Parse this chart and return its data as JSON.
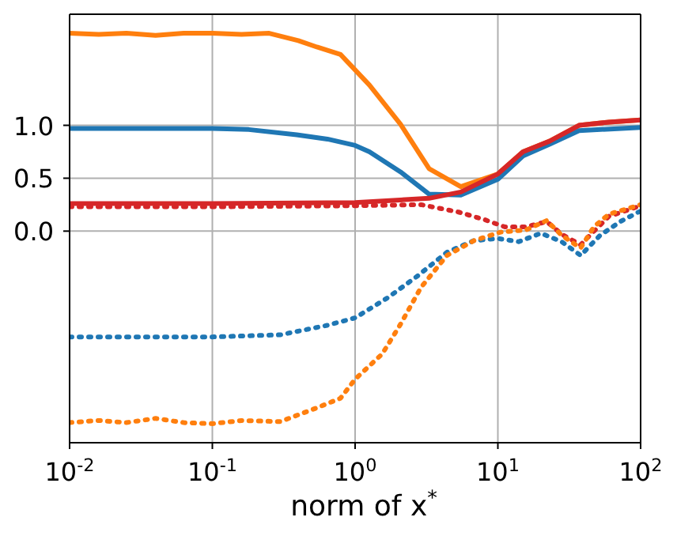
{
  "chart_data": {
    "type": "line",
    "xlabel": "norm of x$^{*}$",
    "log": "x",
    "grid": true,
    "legend": false,
    "marker": "none",
    "xlim": [
      0.01,
      100
    ],
    "ylim": [
      -2.0,
      2.05
    ],
    "xticks": [
      {
        "value": 0.01,
        "label": "10$^{-2}$"
      },
      {
        "value": 0.1,
        "label": "10$^{-1}$"
      },
      {
        "value": 1,
        "label": "10$^{0}$"
      },
      {
        "value": 10,
        "label": "10$^{1}$"
      },
      {
        "value": 100,
        "label": "10$^{2}$"
      }
    ],
    "yticks": [
      {
        "value": 0,
        "label": "0.0"
      },
      0.5,
      {
        "value": 1,
        "label": "1.0"
      }
    ],
    "series": [
      {
        "color": "#ff7f0e",
        "line_style": "solid",
        "x": [
          0.01,
          0.016,
          0.025,
          0.04,
          0.063,
          0.1,
          0.16,
          0.25,
          0.4,
          0.54,
          0.79,
          1.26,
          2.08,
          3.3,
          5.5,
          10,
          15,
          23,
          37,
          60,
          100
        ],
        "values": [
          1.87,
          1.86,
          1.87,
          1.85,
          1.87,
          1.87,
          1.86,
          1.87,
          1.8,
          1.74,
          1.67,
          1.38,
          1.01,
          0.59,
          0.42,
          0.54,
          0.75,
          0.85,
          1.0,
          1.03,
          1.05
        ]
      },
      {
        "color": "#1f77b4",
        "line_style": "solid",
        "x": [
          0.01,
          0.03,
          0.1,
          0.18,
          0.39,
          0.64,
          1.0,
          1.26,
          2.08,
          3.3,
          5.5,
          10,
          15,
          23,
          37,
          100
        ],
        "values": [
          0.97,
          0.97,
          0.97,
          0.96,
          0.91,
          0.87,
          0.81,
          0.75,
          0.56,
          0.35,
          0.34,
          0.49,
          0.71,
          0.82,
          0.95,
          0.98
        ]
      },
      {
        "color": "#d62728",
        "line_style": "solid",
        "x": [
          0.01,
          0.1,
          1.0,
          3.3,
          5.5,
          10,
          15,
          23,
          37,
          60,
          100
        ],
        "values": [
          0.26,
          0.26,
          0.27,
          0.31,
          0.37,
          0.54,
          0.75,
          0.85,
          1.0,
          1.03,
          1.05
        ]
      },
      {
        "color": "#d62728",
        "line_style": "dotted",
        "x": [
          0.01,
          0.1,
          1.0,
          2.9,
          5.3,
          8.0,
          11.2,
          15.7,
          22,
          28,
          38,
          44,
          60,
          100
        ],
        "values": [
          0.23,
          0.23,
          0.24,
          0.25,
          0.18,
          0.11,
          0.04,
          0.04,
          0.09,
          -0.03,
          -0.13,
          -0.04,
          0.14,
          0.24
        ]
      },
      {
        "color": "#1f77b4",
        "line_style": "dotted",
        "x": [
          0.01,
          0.1,
          0.3,
          0.64,
          1.0,
          1.69,
          2.7,
          4.4,
          6.8,
          10,
          14,
          20,
          28,
          38,
          52,
          72,
          100
        ],
        "values": [
          -1.0,
          -1.0,
          -0.98,
          -0.89,
          -0.82,
          -0.63,
          -0.43,
          -0.2,
          -0.09,
          -0.07,
          -0.1,
          -0.02,
          -0.1,
          -0.23,
          -0.04,
          0.09,
          0.19
        ]
      },
      {
        "color": "#ff7f0e",
        "line_style": "dotted",
        "x": [
          0.01,
          0.016,
          0.025,
          0.04,
          0.063,
          0.1,
          0.16,
          0.3,
          0.54,
          0.79,
          1.0,
          1.55,
          2.08,
          2.9,
          4.4,
          6.8,
          10.4,
          15.7,
          22,
          28,
          38,
          47,
          60,
          100
        ],
        "values": [
          -1.81,
          -1.79,
          -1.81,
          -1.77,
          -1.81,
          -1.82,
          -1.79,
          -1.8,
          -1.67,
          -1.58,
          -1.4,
          -1.16,
          -0.88,
          -0.53,
          -0.23,
          -0.09,
          -0.01,
          0.01,
          0.1,
          -0.04,
          -0.16,
          0.04,
          0.16,
          0.25
        ]
      }
    ]
  }
}
